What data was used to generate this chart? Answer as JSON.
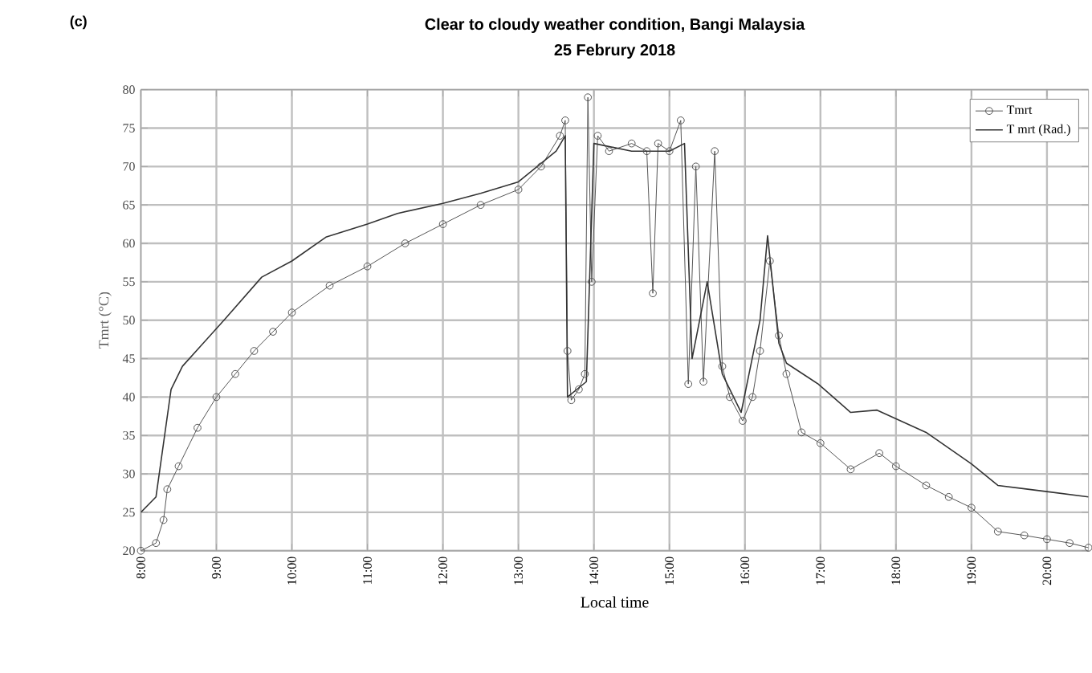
{
  "chart_data": {
    "type": "line",
    "title": "Clear to cloudy weather condition, Bangi Malaysia",
    "subtitle": "25 Februry 2018",
    "xlabel": "Local time",
    "ylabel": "Tmrt (°C)",
    "annotations": [
      "(c)"
    ],
    "xlim": [
      8,
      20.55
    ],
    "ylim": [
      20,
      80
    ],
    "xticks": [
      {
        "value": 8,
        "label": "8:00"
      },
      {
        "value": 9,
        "label": "9:00"
      },
      {
        "value": 10,
        "label": "10:00"
      },
      {
        "value": 11,
        "label": "11:00"
      },
      {
        "value": 12,
        "label": "12:00"
      },
      {
        "value": 13,
        "label": "13:00"
      },
      {
        "value": 14,
        "label": "14:00"
      },
      {
        "value": 15,
        "label": "15:00"
      },
      {
        "value": 16,
        "label": "16:00"
      },
      {
        "value": 17,
        "label": "17:00"
      },
      {
        "value": 18,
        "label": "18:00"
      },
      {
        "value": 19,
        "label": "19:00"
      },
      {
        "value": 20,
        "label": "20:00"
      }
    ],
    "yticks": [
      20,
      25,
      30,
      35,
      40,
      45,
      50,
      55,
      60,
      65,
      70,
      75,
      80
    ],
    "grid": true,
    "legend": "top right",
    "series": [
      {
        "name": "Tmrt",
        "color": "#555555",
        "marker": "circle",
        "x": [
          8.0,
          8.2,
          8.3,
          8.35,
          8.5,
          8.75,
          9.0,
          9.25,
          9.5,
          9.75,
          10.0,
          10.5,
          11.0,
          11.5,
          12.0,
          12.5,
          13.0,
          13.3,
          13.55,
          13.62,
          13.65,
          13.7,
          13.8,
          13.88,
          13.92,
          13.97,
          14.05,
          14.2,
          14.5,
          14.7,
          14.78,
          14.85,
          15.0,
          15.15,
          15.25,
          15.35,
          15.45,
          15.6,
          15.7,
          15.8,
          15.97,
          16.1,
          16.2,
          16.33,
          16.45,
          16.55,
          16.75,
          17.0,
          17.4,
          17.78,
          18.0,
          18.4,
          18.7,
          19.0,
          19.35,
          19.7,
          20.0,
          20.3,
          20.55
        ],
        "values": [
          20,
          21,
          24,
          28,
          31,
          36,
          40,
          43,
          46,
          48.5,
          51,
          54.5,
          57,
          60,
          62.5,
          65,
          67,
          70,
          74,
          76,
          46,
          39.6,
          41,
          43,
          79,
          55,
          74,
          72,
          73,
          72,
          53.5,
          73,
          72,
          76,
          41.7,
          70,
          42,
          72,
          44,
          40,
          36.9,
          40,
          46,
          57.7,
          48,
          43,
          35.4,
          34,
          30.6,
          32.7,
          31,
          28.5,
          27,
          25.6,
          22.5,
          22,
          21.5,
          21,
          20.4
        ]
      },
      {
        "name": "T mrt (Rad.)",
        "color": "#333333",
        "marker": "none",
        "x": [
          8.0,
          8.2,
          8.4,
          8.55,
          9.1,
          9.6,
          10.0,
          10.45,
          11.0,
          11.4,
          12.0,
          12.5,
          13.0,
          13.5,
          13.62,
          13.65,
          13.9,
          14.0,
          14.5,
          15.0,
          15.2,
          15.3,
          15.5,
          15.7,
          15.95,
          16.2,
          16.3,
          16.45,
          16.55,
          16.97,
          17.4,
          17.75,
          18.4,
          19.0,
          19.35,
          20.0,
          20.55
        ],
        "values": [
          25,
          27,
          41,
          44,
          50,
          55.6,
          57.7,
          60.8,
          62.5,
          63.9,
          65.2,
          66.5,
          68,
          72,
          74,
          40,
          42,
          73,
          72,
          72,
          73,
          45,
          55,
          43,
          38,
          50,
          61,
          47,
          44.4,
          41.7,
          38,
          38.3,
          35.4,
          31.3,
          28.5,
          27.7,
          27
        ]
      }
    ]
  }
}
